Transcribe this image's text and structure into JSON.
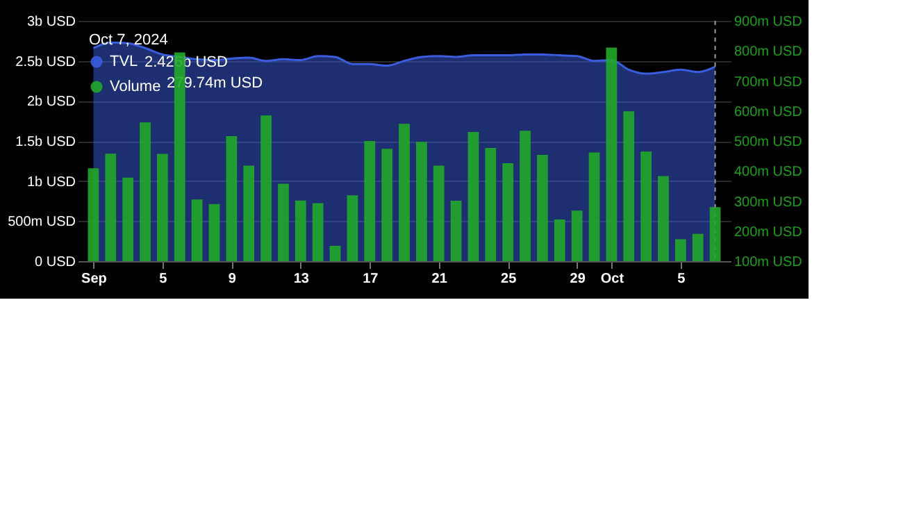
{
  "chart_data": {
    "type": "bar",
    "x": [
      "2024-09-01",
      "2024-09-02",
      "2024-09-03",
      "2024-09-04",
      "2024-09-05",
      "2024-09-06",
      "2024-09-07",
      "2024-09-08",
      "2024-09-09",
      "2024-09-10",
      "2024-09-11",
      "2024-09-12",
      "2024-09-13",
      "2024-09-14",
      "2024-09-15",
      "2024-09-16",
      "2024-09-17",
      "2024-09-18",
      "2024-09-19",
      "2024-09-20",
      "2024-09-21",
      "2024-09-22",
      "2024-09-23",
      "2024-09-24",
      "2024-09-25",
      "2024-09-26",
      "2024-09-27",
      "2024-09-28",
      "2024-09-29",
      "2024-09-30",
      "2024-10-01",
      "2024-10-02",
      "2024-10-03",
      "2024-10-04",
      "2024-10-05",
      "2024-10-06",
      "2024-10-07"
    ],
    "series": [
      {
        "name": "TVL",
        "type": "area",
        "color": "#3a5de0",
        "values": [
          2660000000,
          2730000000,
          2720000000,
          2660000000,
          2580000000,
          2550000000,
          2520000000,
          2510000000,
          2530000000,
          2540000000,
          2500000000,
          2520000000,
          2510000000,
          2560000000,
          2550000000,
          2460000000,
          2460000000,
          2440000000,
          2500000000,
          2550000000,
          2560000000,
          2550000000,
          2570000000,
          2570000000,
          2570000000,
          2580000000,
          2580000000,
          2570000000,
          2560000000,
          2500000000,
          2510000000,
          2390000000,
          2340000000,
          2360000000,
          2390000000,
          2360000000,
          2426000000
        ]
      },
      {
        "name": "Volume",
        "axis": "y2",
        "color": "#22a82a",
        "values": [
          409000000,
          458000000,
          378000000,
          562000000,
          457000000,
          795000000,
          305000000,
          290000000,
          516000000,
          418000000,
          585000000,
          358000000,
          302000000,
          293000000,
          151000000,
          319000000,
          500000000,
          474000000,
          557000000,
          497000000,
          418000000,
          301000000,
          530000000,
          477000000,
          426000000,
          534000000,
          454000000,
          239000000,
          268000000,
          462000000,
          811000000,
          599000000,
          465000000,
          383000000,
          173000000,
          191000000,
          279740000
        ]
      }
    ],
    "xlim": [
      "2024-08-31T12:00",
      "2024-10-07T12:00"
    ],
    "xticks": [
      {
        "value": "2024-09-01",
        "label": "Sep"
      },
      {
        "value": "2024-09-05",
        "label": "5"
      },
      {
        "value": "2024-09-09",
        "label": "9"
      },
      {
        "value": "2024-09-13",
        "label": "13"
      },
      {
        "value": "2024-09-17",
        "label": "17"
      },
      {
        "value": "2024-09-21",
        "label": "21"
      },
      {
        "value": "2024-09-25",
        "label": "25"
      },
      {
        "value": "2024-09-29",
        "label": "29"
      },
      {
        "value": "2024-10-01",
        "label": "Oct"
      },
      {
        "value": "2024-10-05",
        "label": "5"
      }
    ],
    "ylim": [
      0,
      3000000000
    ],
    "yticks": [
      {
        "value": 0,
        "label": "0 USD"
      },
      {
        "value": 500000000,
        "label": "500m USD"
      },
      {
        "value": 1000000000,
        "label": "1b USD"
      },
      {
        "value": 1500000000,
        "label": "1.5b USD"
      },
      {
        "value": 2000000000,
        "label": "2b USD"
      },
      {
        "value": 2500000000,
        "label": "2.5b USD"
      },
      {
        "value": 3000000000,
        "label": "3b USD"
      }
    ],
    "y2lim": [
      100000000,
      900000000
    ],
    "y2ticks": [
      {
        "value": 100000000,
        "label": "100m USD"
      },
      {
        "value": 200000000,
        "label": "200m USD"
      },
      {
        "value": 300000000,
        "label": "300m USD"
      },
      {
        "value": 400000000,
        "label": "400m USD"
      },
      {
        "value": 500000000,
        "label": "500m USD"
      },
      {
        "value": 600000000,
        "label": "600m USD"
      },
      {
        "value": 700000000,
        "label": "700m USD"
      },
      {
        "value": 800000000,
        "label": "800m USD"
      },
      {
        "value": 900000000,
        "label": "900m USD"
      }
    ],
    "ref_lines": [
      {
        "axis": "x",
        "value": "2024-10-07",
        "color": "#9a9a9a",
        "line_style": "dashed"
      }
    ],
    "legend_title": "Oct 7, 2024",
    "annotations": [
      "2.426b USD",
      "279.74m USD"
    ],
    "legend": "top left",
    "grid": "y"
  }
}
